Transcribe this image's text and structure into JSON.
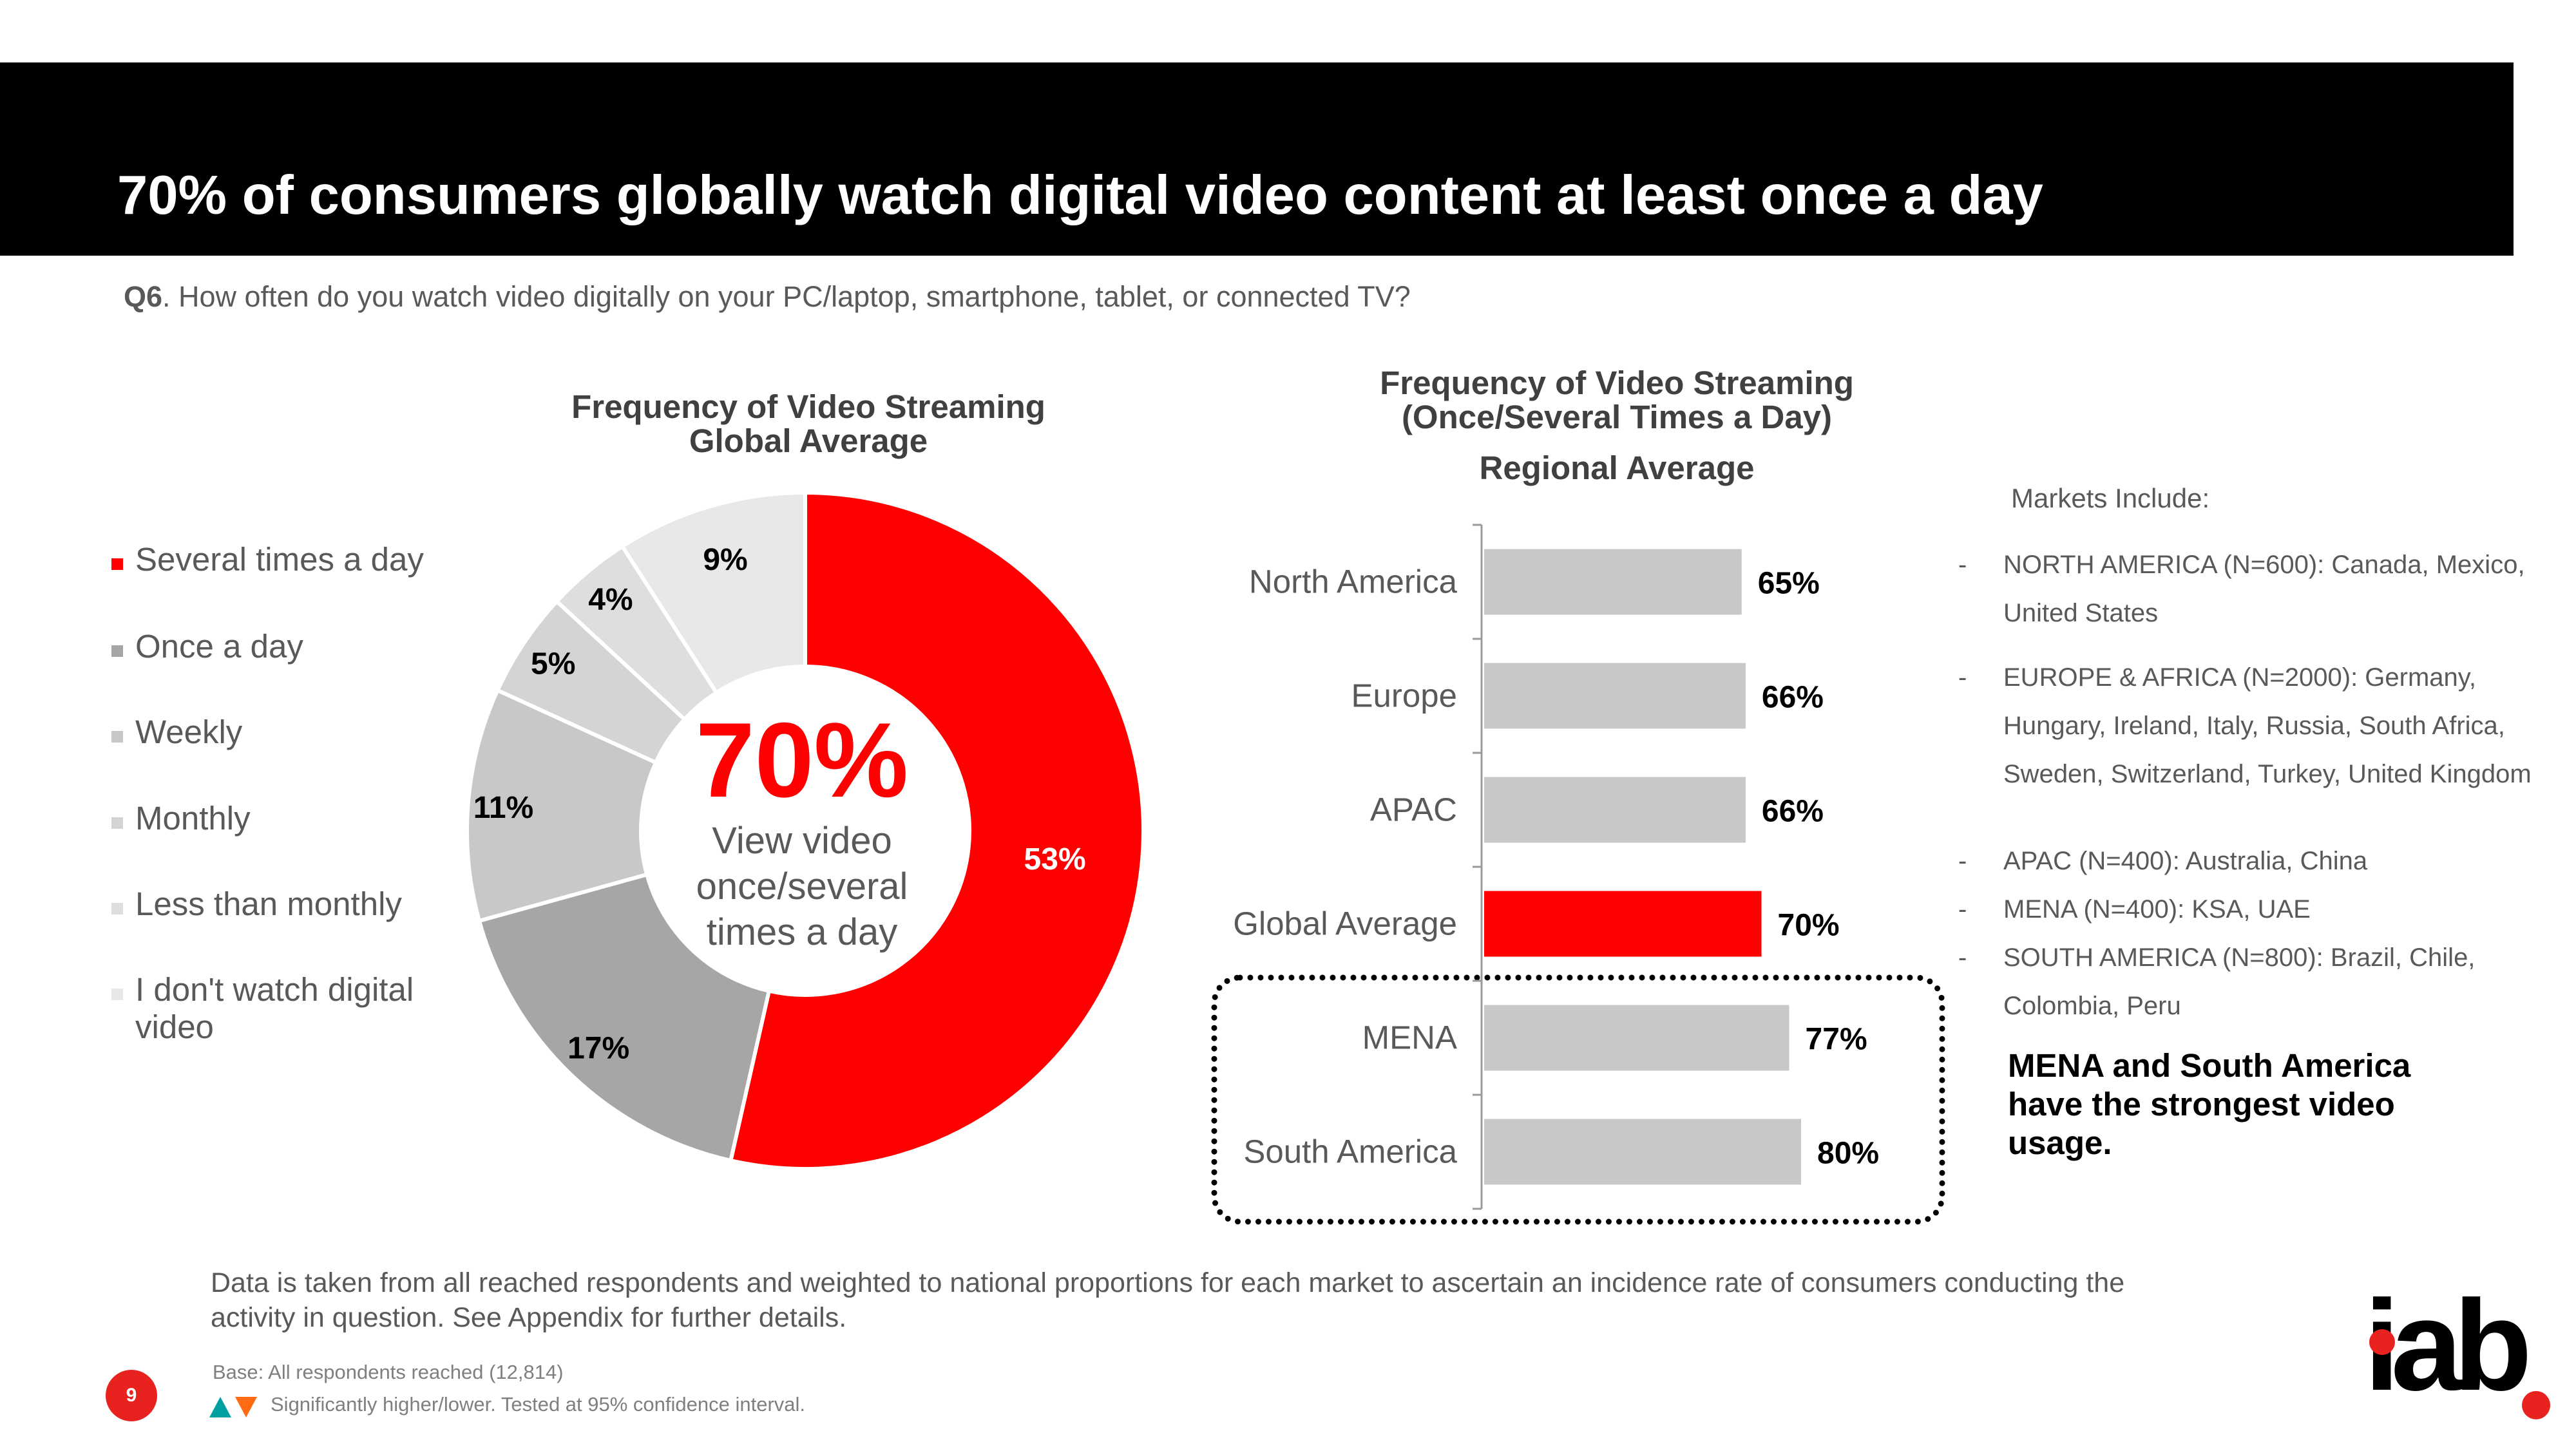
{
  "slide": {
    "title": "70% of consumers globally watch digital video content at least once a day",
    "question_label": "Q6",
    "question_text": ". How often do you watch video digitally on your PC/laptop, smartphone, tablet, or connected TV?",
    "page_number": "9",
    "footnote": "Data is taken from all reached respondents and weighted to national proportions for each market to ascertain an incidence rate of consumers conducting the activity in question. See Appendix for further details.",
    "base_note": "Base: All respondents reached (12,814)",
    "significance_note": "Significantly higher/lower. Tested at 95% confidence interval.",
    "logo_text": "iab",
    "colors": {
      "accent": "#ff0000",
      "title_bar": "#000000",
      "bar_gray": "#c8c8c8",
      "up_arrow": "#00a0a0",
      "down_arrow": "#ff6a13"
    }
  },
  "donut": {
    "title_line1": "Frequency of Video Streaming",
    "title_line2": "Global Average",
    "center_value": "70%",
    "center_line1": "View video",
    "center_line2": "once/several",
    "center_line3": "times a day"
  },
  "bar_chart": {
    "title_line1": "Frequency of Video Streaming",
    "title_line2": "(Once/Several Times a Day)",
    "subtitle": "Regional Average"
  },
  "markets": {
    "heading": "Markets Include:",
    "items": [
      "NORTH AMERICA (N=600): Canada, Mexico, United States",
      "EUROPE & AFRICA (N=2000): Germany, Hungary, Ireland, Italy, Russia, South Africa, Sweden, Switzerland, Turkey, United Kingdom",
      "APAC (N=400): Australia, China",
      "MENA (N=400): KSA, UAE",
      "SOUTH AMERICA (N=800): Brazil, Chile, Colombia, Peru"
    ],
    "callout": "MENA and South America have the strongest video usage."
  },
  "chart_data": [
    {
      "type": "pie",
      "title": "Frequency of Video Streaming Global Average",
      "categories": [
        "Several times a day",
        "Once a day",
        "Weekly",
        "Monthly",
        "Less than monthly",
        "I don't watch digital video"
      ],
      "values": [
        53,
        17,
        11,
        5,
        4,
        9
      ],
      "labels": [
        "53%",
        "17%",
        "11%",
        "5%",
        "4%",
        "9%"
      ],
      "colors": [
        "#ff0000",
        "#a6a6a6",
        "#c8c8c8",
        "#d4d4d4",
        "#dedede",
        "#e8e8e8"
      ],
      "legend": "left"
    },
    {
      "type": "bar",
      "orientation": "horizontal",
      "title": "Frequency of Video Streaming (Once/Several Times a Day)",
      "subtitle": "Regional Average",
      "categories": [
        "North America",
        "Europe",
        "APAC",
        "Global Average",
        "MENA",
        "South America"
      ],
      "values": [
        65,
        66,
        66,
        70,
        77,
        80
      ],
      "labels": [
        "65%",
        "66%",
        "66%",
        "70%",
        "77%",
        "80%"
      ],
      "highlight": "Global Average",
      "xlim": [
        0,
        100
      ],
      "boxed_categories": [
        "MENA",
        "South America"
      ]
    }
  ]
}
